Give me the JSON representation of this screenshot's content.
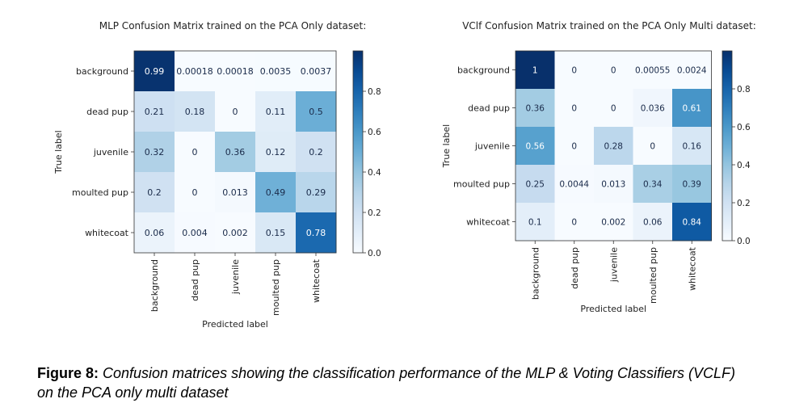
{
  "chart_data": [
    {
      "type": "heatmap",
      "title": "MLP Confusion Matrix trained on the PCA Only dataset:",
      "xlabel": "Predicted label",
      "ylabel": "True label",
      "categories": [
        "background",
        "dead pup",
        "juvenile",
        "moulted pup",
        "whitecoat"
      ],
      "matrix": [
        [
          0.99,
          0.00018,
          0.00018,
          0.0035,
          0.0037
        ],
        [
          0.21,
          0.18,
          0,
          0.11,
          0.5
        ],
        [
          0.32,
          0,
          0.36,
          0.12,
          0.2
        ],
        [
          0.2,
          0,
          0.013,
          0.49,
          0.29
        ],
        [
          0.06,
          0.004,
          0.002,
          0.15,
          0.78
        ]
      ],
      "cell_labels": [
        [
          "0.99",
          "0.00018",
          "0.00018",
          "0.0035",
          "0.0037"
        ],
        [
          "0.21",
          "0.18",
          "0",
          "0.11",
          "0.5"
        ],
        [
          "0.32",
          "0",
          "0.36",
          "0.12",
          "0.2"
        ],
        [
          "0.2",
          "0",
          "0.013",
          "0.49",
          "0.29"
        ],
        [
          "0.06",
          "0.004",
          "0.002",
          "0.15",
          "0.78"
        ]
      ],
      "colorbar": {
        "min": 0,
        "max": 1,
        "ticks": [
          0,
          0.2,
          0.4,
          0.6,
          0.8
        ],
        "tick_labels": [
          "0.0",
          "0.2",
          "0.4",
          "0.6",
          "0.8"
        ]
      },
      "colormap": "Blues"
    },
    {
      "type": "heatmap",
      "title": "VClf Confusion Matrix trained on the PCA Only Multi dataset:",
      "xlabel": "Predicted label",
      "ylabel": "True label",
      "categories": [
        "background",
        "dead pup",
        "juvenile",
        "moulted pup",
        "whitecoat"
      ],
      "matrix": [
        [
          1,
          0,
          0,
          0.00055,
          0.0024
        ],
        [
          0.36,
          0,
          0,
          0.036,
          0.61
        ],
        [
          0.56,
          0,
          0.28,
          0,
          0.16
        ],
        [
          0.25,
          0.0044,
          0.013,
          0.34,
          0.39
        ],
        [
          0.1,
          0,
          0.002,
          0.06,
          0.84
        ]
      ],
      "cell_labels": [
        [
          "1",
          "0",
          "0",
          "0.00055",
          "0.0024"
        ],
        [
          "0.36",
          "0",
          "0",
          "0.036",
          "0.61"
        ],
        [
          "0.56",
          "0",
          "0.28",
          "0",
          "0.16"
        ],
        [
          "0.25",
          "0.0044",
          "0.013",
          "0.34",
          "0.39"
        ],
        [
          "0.1",
          "0",
          "0.002",
          "0.06",
          "0.84"
        ]
      ],
      "colorbar": {
        "min": 0,
        "max": 1,
        "ticks": [
          0,
          0.2,
          0.4,
          0.6,
          0.8
        ],
        "tick_labels": [
          "0.0",
          "0.2",
          "0.4",
          "0.6",
          "0.8"
        ]
      },
      "colormap": "Blues"
    }
  ],
  "caption": {
    "lead": "Figure 8:",
    "body": " Confusion matrices showing the classification performance of the MLP & Voting Classifiers (VCLF) on the PCA only multi dataset"
  }
}
